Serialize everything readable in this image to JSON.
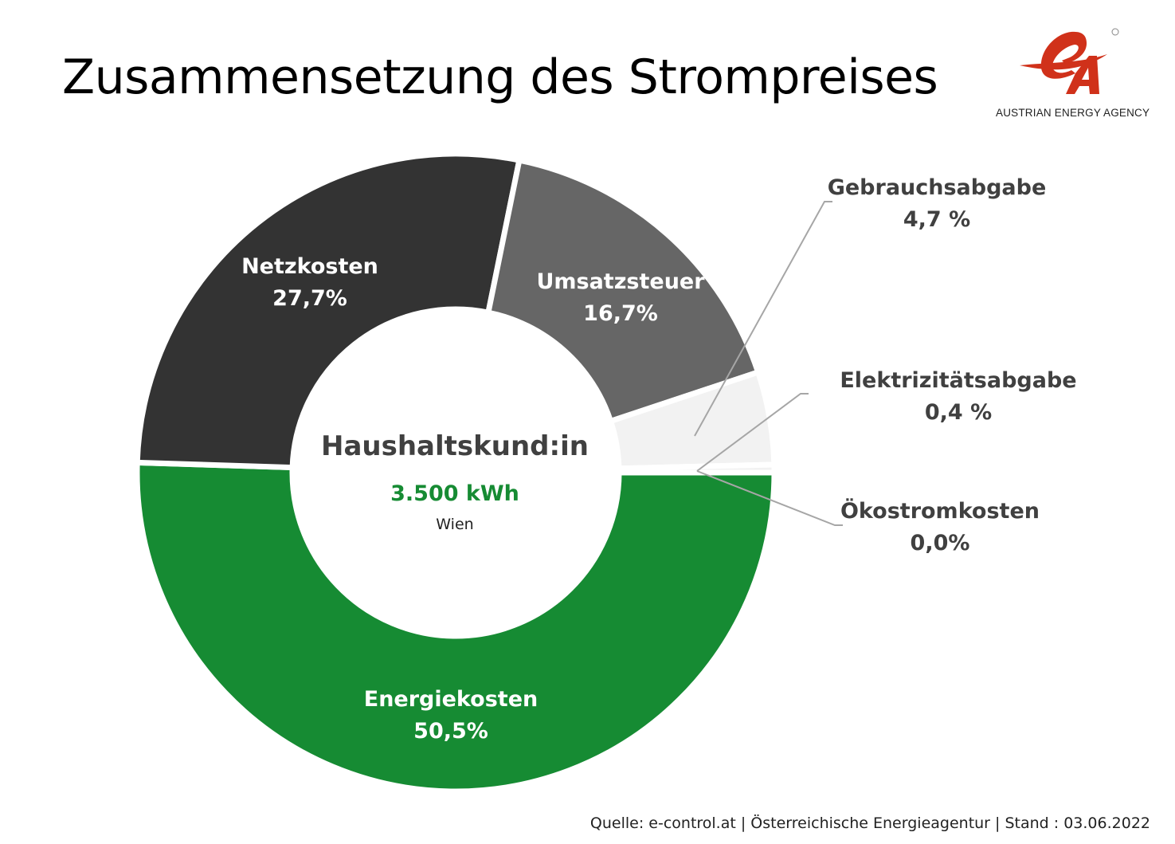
{
  "title": "Zusammensetzung des Strompreises",
  "logo": {
    "text": "AUSTRIAN ENERGY AGENCY",
    "brand_color": "#d0311a"
  },
  "source": "Quelle: e-control.at | Österreichische Energieagentur | Stand : 03.06.2022",
  "chart_data": {
    "type": "pie",
    "variant": "donut",
    "title": "Zusammensetzung des Strompreises",
    "center": {
      "title": "Haushaltskund:in",
      "consumption": "3.500 kWh",
      "region": "Wien"
    },
    "slices": [
      {
        "name": "Energiekosten",
        "value": 50.5,
        "label": "50,5%",
        "color": "#168b33",
        "text_color": "#ffffff",
        "label_position": "inside"
      },
      {
        "name": "Netzkosten",
        "value": 27.7,
        "label": "27,7%",
        "color": "#333333",
        "text_color": "#ffffff",
        "label_position": "inside"
      },
      {
        "name": "Umsatzsteuer",
        "value": 16.7,
        "label": "16,7%",
        "color": "#666666",
        "text_color": "#ffffff",
        "label_position": "inside"
      },
      {
        "name": "Gebrauchsabgabe",
        "value": 4.7,
        "label": "4,7 %",
        "color": "#f2f2f2",
        "text_color": "#404040",
        "label_position": "outside"
      },
      {
        "name": "Elektrizitätsabgabe",
        "value": 0.4,
        "label": "0,4 %",
        "color": "#f2f2f2",
        "text_color": "#404040",
        "label_position": "outside"
      },
      {
        "name": "Ökostromkosten",
        "value": 0.0,
        "label": "0,0%",
        "color": "#f2f2f2",
        "text_color": "#404040",
        "label_position": "outside"
      }
    ]
  }
}
